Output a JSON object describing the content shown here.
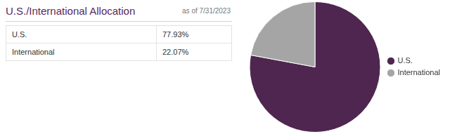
{
  "header": {
    "title": "U.S./International Allocation",
    "subtitle": "as of 7/31/2023"
  },
  "table": {
    "rows": [
      [
        "U.S.",
        "77.93%"
      ],
      [
        "International",
        "22.07%"
      ]
    ]
  },
  "chart_data": {
    "type": "pie",
    "categories": [
      "U.S.",
      "International"
    ],
    "values": [
      77.93,
      22.07
    ],
    "colors": [
      "#4f2650",
      "#a5a5a5"
    ],
    "legend": "right"
  }
}
